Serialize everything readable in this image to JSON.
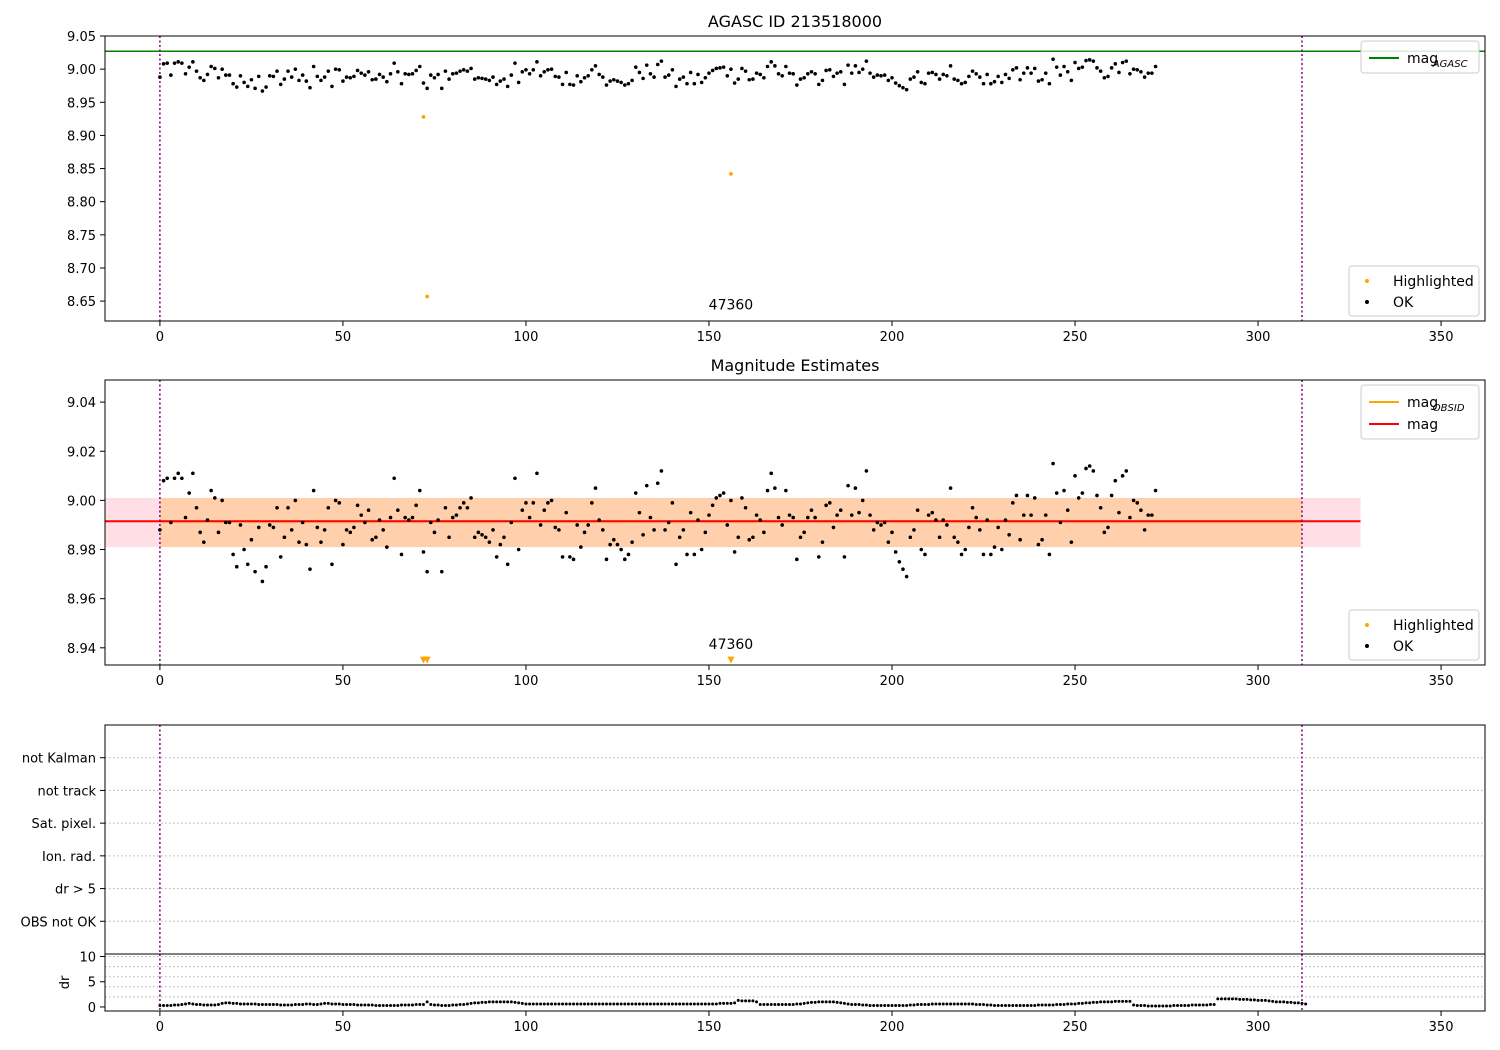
{
  "chart_data": [
    {
      "type": "scatter",
      "title": "AGASC ID 213518000",
      "xlim": [
        -15,
        362
      ],
      "ylim": [
        8.62,
        9.05
      ],
      "xticks": [
        0,
        50,
        100,
        150,
        200,
        250,
        300,
        350
      ],
      "yticks": [
        8.65,
        8.7,
        8.75,
        8.8,
        8.85,
        8.9,
        8.95,
        9.0,
        9.05
      ],
      "ytick_decimals": 2,
      "grid": false,
      "vlines": [
        0,
        312
      ],
      "obsid_annotation": {
        "text": "47360",
        "x": 156,
        "y": 8.645
      },
      "hlines": [
        {
          "name": "mag",
          "subscript": "AGASC",
          "y": 9.027,
          "color": "#008000"
        }
      ],
      "series": [
        {
          "name": "Highlighted",
          "color": "#ffa500",
          "points": [
            [
              72,
              8.928
            ],
            [
              73,
              8.657
            ],
            [
              156,
              8.842
            ]
          ]
        },
        {
          "name": "OK",
          "color": "#000000",
          "values": [
            8.988,
            9.008,
            9.009,
            8.991,
            9.009,
            9.011,
            9.009,
            8.993,
            9.003,
            9.011,
            8.997,
            8.987,
            8.983,
            8.992,
            9.004,
            9.001,
            8.987,
            9.0,
            8.991,
            8.991,
            8.978,
            8.973,
            8.99,
            8.98,
            8.974,
            8.984,
            8.971,
            8.989,
            8.967,
            8.973,
            8.99,
            8.989,
            8.997,
            8.977,
            8.985,
            8.997,
            8.988,
            9.0,
            8.983,
            8.991,
            8.982,
            8.972,
            9.004,
            8.989,
            8.983,
            8.988,
            8.997,
            8.974,
            9.0,
            8.999,
            8.982,
            8.988,
            8.987,
            8.989,
            8.998,
            8.994,
            8.991,
            8.996,
            8.984,
            8.985,
            8.992,
            8.988,
            8.981,
            8.993,
            9.009,
            8.996,
            8.978,
            8.993,
            8.992,
            8.993,
            8.998,
            9.004,
            8.979,
            8.971,
            8.991,
            8.987,
            8.992,
            8.971,
            8.997,
            8.985,
            8.993,
            8.994,
            8.997,
            8.999,
            8.997,
            9.001,
            8.985,
            8.987,
            8.986,
            8.985,
            8.983,
            8.988,
            8.977,
            8.982,
            8.985,
            8.974,
            8.991,
            9.009,
            8.98,
            8.996,
            8.999,
            8.993,
            8.999,
            9.011,
            8.99,
            8.996,
            8.999,
            9.0,
            8.989,
            8.988,
            8.977,
            8.995,
            8.977,
            8.976,
            8.99,
            8.981,
            8.987,
            8.99,
            8.999,
            9.005,
            8.992,
            8.988,
            8.976,
            8.982,
            8.984,
            8.982,
            8.98,
            8.976,
            8.978,
            8.983,
            9.003,
            8.995,
            8.986,
            9.006,
            8.993,
            8.988,
            9.007,
            9.012,
            8.988,
            8.991,
            8.999,
            8.974,
            8.985,
            8.988,
            8.978,
            8.995,
            8.978,
            8.992,
            8.98,
            8.987,
            8.994,
            8.998,
            9.001,
            9.002,
            9.003,
            8.99,
            9.0,
            8.979,
            8.985,
            9.001,
            8.997,
            8.984,
            8.985,
            8.994,
            8.992,
            8.987,
            9.004,
            9.011,
            9.005,
            8.993,
            8.99,
            9.004,
            8.994,
            8.993,
            8.976,
            8.985,
            8.987,
            8.993,
            8.996,
            8.993,
            8.977,
            8.983,
            8.998,
            8.999,
            8.989,
            8.994,
            8.996,
            8.977,
            9.006,
            8.994,
            9.005,
            8.995,
            9.0,
            9.012,
            8.994,
            8.988,
            8.991,
            8.99,
            8.991,
            8.983,
            8.987,
            8.979,
            8.975,
            8.972,
            8.969,
            8.985,
            8.988,
            8.996,
            8.98,
            8.978,
            8.994,
            8.995,
            8.992,
            8.985,
            8.992,
            8.99,
            9.005,
            8.985,
            8.983,
            8.978,
            8.98,
            8.989,
            8.997,
            8.993,
            8.988,
            8.978,
            8.992,
            8.978,
            8.981,
            8.989,
            8.98,
            8.992,
            8.986,
            8.999,
            9.002,
            8.984,
            8.994,
            9.002,
            8.994,
            9.001,
            8.982,
            8.984,
            8.994,
            8.978,
            9.015,
            9.003,
            8.991,
            9.004,
            8.996,
            8.983,
            9.01,
            9.001,
            9.003,
            9.013,
            9.014,
            9.012,
            9.002,
            8.997,
            8.987,
            8.989,
            9.002,
            9.008,
            8.995,
            9.01,
            9.012,
            8.993,
            9.0,
            8.999,
            8.996,
            8.988,
            8.994,
            8.994,
            9.004
          ]
        }
      ],
      "legends": {
        "lines": {
          "loc": "upper right"
        },
        "points": {
          "loc": "lower right"
        }
      }
    },
    {
      "type": "scatter",
      "title": "Magnitude Estimates",
      "xlim": [
        -15,
        362
      ],
      "ylim": [
        8.933,
        9.049
      ],
      "xticks": [
        0,
        50,
        100,
        150,
        200,
        250,
        300,
        350
      ],
      "yticks": [
        8.94,
        8.96,
        8.98,
        9.0,
        9.02,
        9.04
      ],
      "ytick_decimals": 2,
      "grid": false,
      "vlines": [
        0,
        312
      ],
      "obsid_annotation": {
        "text": "47360",
        "x": 156,
        "y": 8.937
      },
      "bands": [
        {
          "x0": -15,
          "x1": 328,
          "y0": 8.981,
          "y1": 9.001,
          "color": "#ffc0cb",
          "opacity": 0.5
        },
        {
          "x0": 0,
          "x1": 312,
          "y0": 8.981,
          "y1": 9.001,
          "color": "#ffa500",
          "opacity": 0.25
        }
      ],
      "hline_segments": [
        {
          "name": "mag",
          "subscript": "OBSID",
          "x0": 0,
          "x1": 312,
          "y": 8.9915,
          "color": "#ffa500"
        },
        {
          "name": "mag",
          "subscript": "",
          "x0": -15,
          "x1": 328,
          "y": 8.9915,
          "color": "#ff0000"
        }
      ],
      "series": [
        {
          "name": "Highlighted",
          "color": "#ffa500",
          "marker": "triangle-down",
          "points": [
            [
              72,
              8.935
            ],
            [
              73,
              8.935
            ],
            [
              156,
              8.935
            ]
          ]
        },
        {
          "name": "OK",
          "color": "#000000",
          "same_as_panel": 0
        }
      ],
      "legends": {
        "lines": {
          "loc": "upper right"
        },
        "points": {
          "loc": "lower right"
        }
      }
    },
    {
      "type": "table",
      "title": "",
      "xlim": [
        -15,
        362
      ],
      "flag_rows": [
        "not Kalman",
        "not track",
        "Sat. pixel.",
        "Ion. rad.",
        "dr > 5",
        "OBS not OK"
      ],
      "vlines": [
        0,
        312
      ],
      "flags": []
    },
    {
      "type": "scatter",
      "title": "",
      "xlim": [
        -15,
        362
      ],
      "ylim": [
        -0.8,
        10.5
      ],
      "xticks": [
        0,
        50,
        100,
        150,
        200,
        250,
        300,
        350
      ],
      "yticks": [
        0,
        5,
        10
      ],
      "ylabel": "dr",
      "grid": true,
      "vlines": [
        0,
        312
      ],
      "series": [
        {
          "name": "dr",
          "color": "#000000",
          "values": [
            0.3,
            0.3,
            0.3,
            0.3,
            0.4,
            0.4,
            0.5,
            0.6,
            0.7,
            0.6,
            0.5,
            0.5,
            0.4,
            0.4,
            0.4,
            0.4,
            0.5,
            0.7,
            0.8,
            0.8,
            0.7,
            0.7,
            0.6,
            0.6,
            0.6,
            0.6,
            0.6,
            0.5,
            0.5,
            0.5,
            0.5,
            0.5,
            0.5,
            0.4,
            0.4,
            0.4,
            0.4,
            0.5,
            0.5,
            0.5,
            0.6,
            0.6,
            0.5,
            0.5,
            0.6,
            0.7,
            0.7,
            0.6,
            0.6,
            0.6,
            0.5,
            0.5,
            0.5,
            0.5,
            0.4,
            0.4,
            0.4,
            0.4,
            0.4,
            0.3,
            0.3,
            0.3,
            0.3,
            0.3,
            0.3,
            0.3,
            0.4,
            0.4,
            0.4,
            0.4,
            0.5,
            0.5,
            0.5,
            1.0,
            0.5,
            0.4,
            0.4,
            0.3,
            0.3,
            0.3,
            0.4,
            0.4,
            0.5,
            0.5,
            0.6,
            0.7,
            0.8,
            0.8,
            0.9,
            0.9,
            1.0,
            1.0,
            1.0,
            1.0,
            1.0,
            1.0,
            1.0,
            0.9,
            0.8,
            0.7,
            0.6,
            0.6,
            0.6,
            0.6,
            0.6,
            0.6,
            0.6,
            0.6,
            0.6,
            0.6,
            0.6,
            0.6,
            0.6,
            0.6,
            0.6,
            0.6,
            0.6,
            0.6,
            0.6,
            0.6,
            0.6,
            0.6,
            0.6,
            0.6,
            0.6,
            0.6,
            0.6,
            0.6,
            0.6,
            0.6,
            0.6,
            0.6,
            0.6,
            0.6,
            0.6,
            0.6,
            0.6,
            0.6,
            0.6,
            0.6,
            0.6,
            0.6,
            0.6,
            0.6,
            0.6,
            0.6,
            0.6,
            0.6,
            0.6,
            0.6,
            0.6,
            0.6,
            0.6,
            0.7,
            0.7,
            0.7,
            0.7,
            0.8,
            1.3,
            1.2,
            1.2,
            1.2,
            1.2,
            1.0,
            0.5,
            0.5,
            0.5,
            0.5,
            0.5,
            0.5,
            0.5,
            0.5,
            0.5,
            0.5,
            0.6,
            0.6,
            0.7,
            0.8,
            0.9,
            0.9,
            1.0,
            1.0,
            1.0,
            1.0,
            1.0,
            0.9,
            0.8,
            0.7,
            0.6,
            0.5,
            0.5,
            0.5,
            0.4,
            0.4,
            0.3,
            0.3,
            0.3,
            0.3,
            0.3,
            0.3,
            0.3,
            0.3,
            0.3,
            0.3,
            0.3,
            0.4,
            0.4,
            0.5,
            0.5,
            0.5,
            0.5,
            0.6,
            0.6,
            0.6,
            0.6,
            0.6,
            0.6,
            0.6,
            0.6,
            0.6,
            0.6,
            0.6,
            0.6,
            0.5,
            0.5,
            0.5,
            0.4,
            0.4,
            0.3,
            0.3,
            0.3,
            0.3,
            0.3,
            0.3,
            0.3,
            0.3,
            0.3,
            0.3,
            0.3,
            0.3,
            0.4,
            0.4,
            0.4,
            0.4,
            0.4,
            0.5,
            0.5,
            0.5,
            0.6,
            0.6,
            0.6,
            0.7,
            0.7,
            0.8,
            0.8,
            0.9,
            0.9,
            1.0,
            1.0,
            1.0,
            1.0,
            1.1,
            1.1,
            1.1,
            1.1,
            1.1,
            0.4,
            0.3,
            0.3,
            0.3,
            0.2,
            0.2,
            0.2,
            0.2,
            0.2,
            0.2,
            0.2,
            0.3,
            0.3,
            0.3,
            0.3,
            0.3,
            0.4,
            0.4,
            0.4,
            0.4,
            0.4,
            0.5,
            0.5,
            1.6,
            1.6,
            1.6,
            1.6,
            1.6,
            1.6,
            1.5,
            1.5,
            1.5,
            1.4,
            1.4,
            1.3,
            1.3,
            1.3,
            1.2,
            1.1,
            1.0,
            1.0,
            1.0,
            0.9,
            0.9,
            0.8,
            0.8,
            0.7,
            0.6
          ]
        }
      ]
    }
  ]
}
